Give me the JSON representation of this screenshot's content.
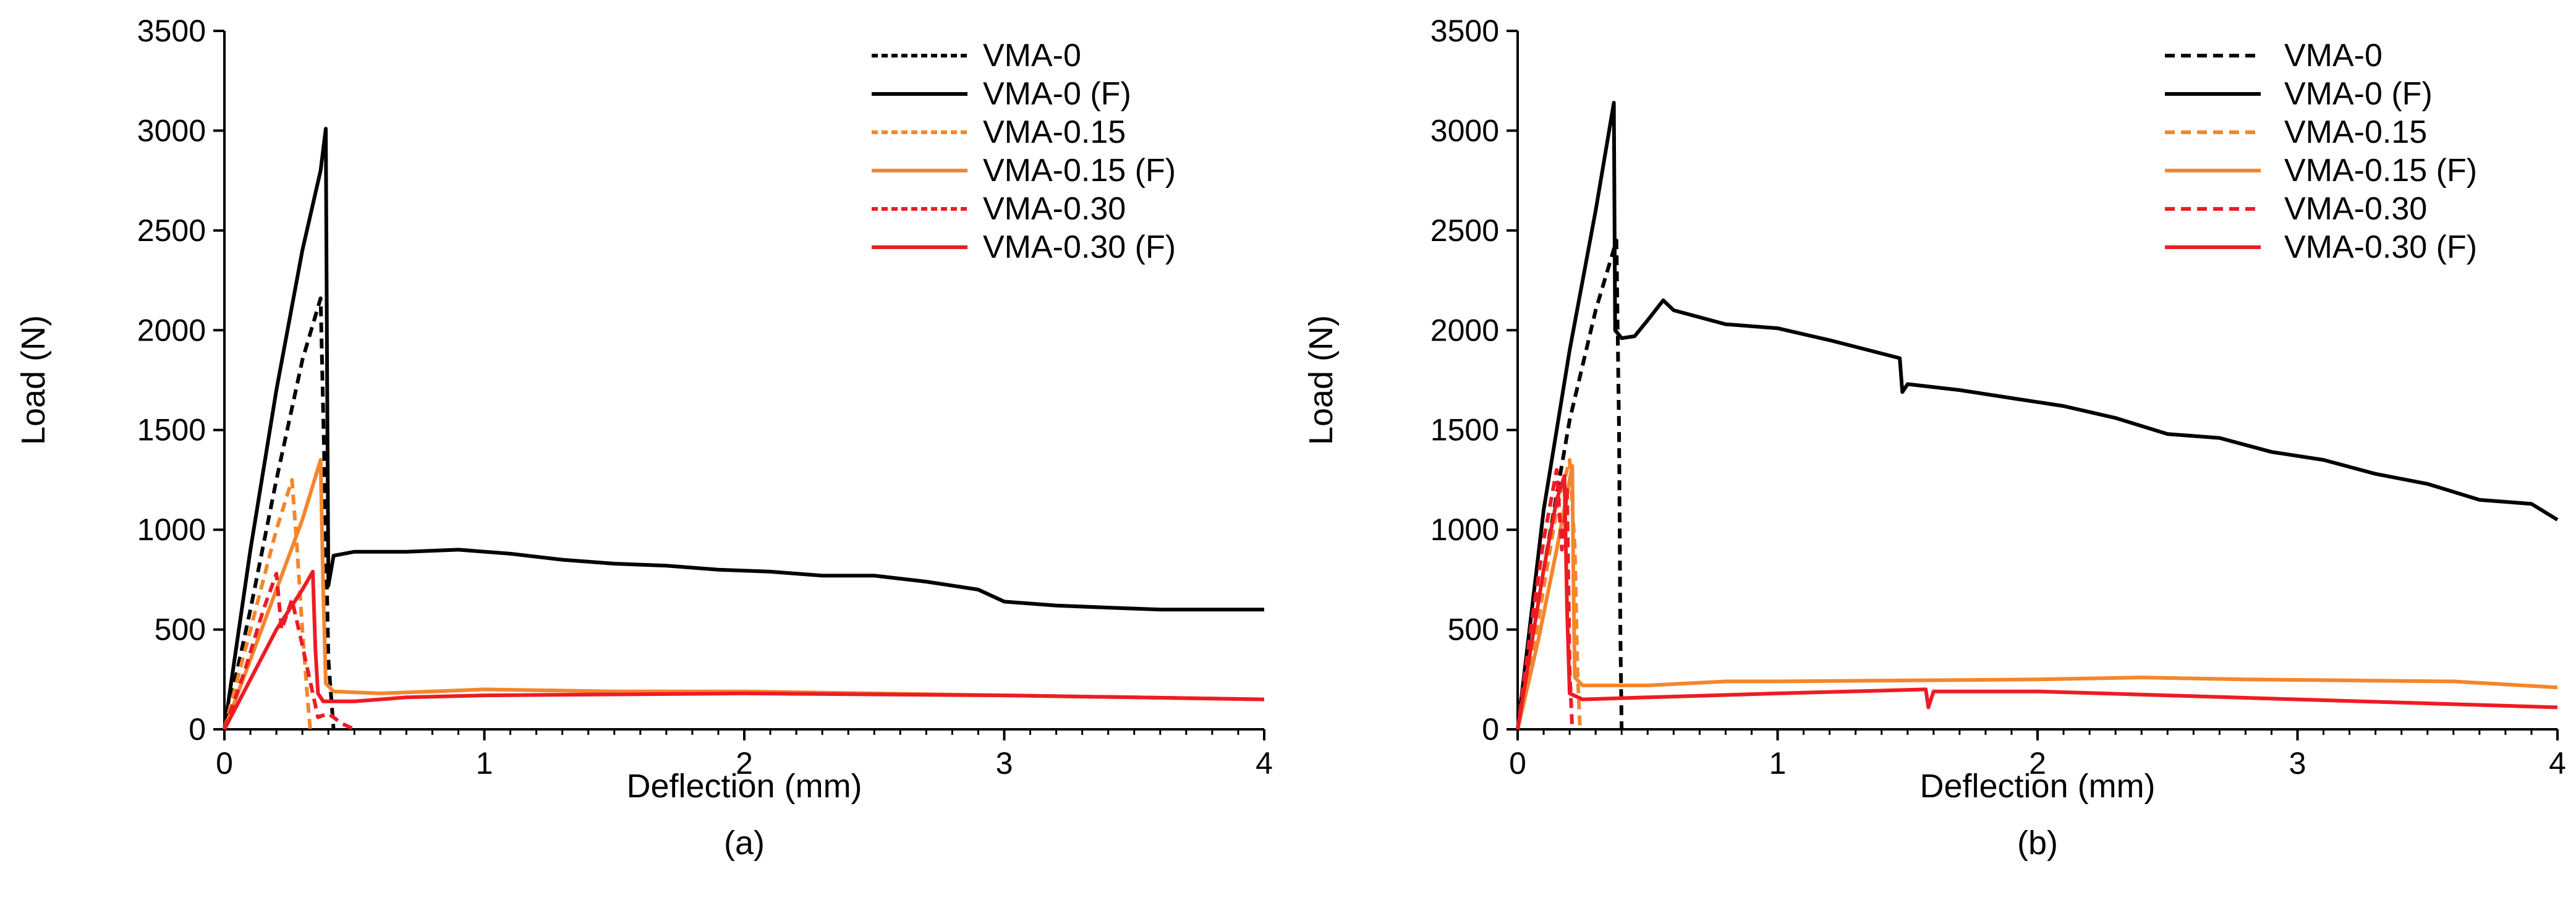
{
  "figure": {
    "captions": [
      "(a)",
      "(b)"
    ]
  },
  "colors": {
    "black": "#000000",
    "orange": "#F4862C",
    "red": "#ED1C24"
  },
  "chart_data": [
    {
      "type": "line",
      "caption": "(a)",
      "xlabel": "Deflection (mm)",
      "ylabel": "Load (N)",
      "xlim": [
        0,
        4
      ],
      "ylim": [
        0,
        3500
      ],
      "xticks": [
        "0",
        "1",
        "2",
        "3",
        "4"
      ],
      "yticks": [
        "0",
        "500",
        "1000",
        "1500",
        "2000",
        "2500",
        "3000",
        "3500"
      ],
      "grid": false,
      "legend_position": "top-right",
      "series": [
        {
          "name": "VMA-0",
          "color": "#000000",
          "dash": "dashed",
          "x": [
            0,
            0.1,
            0.2,
            0.3,
            0.37,
            0.385,
            0.4,
            0.42
          ],
          "y": [
            0,
            600,
            1250,
            1850,
            2160,
            1300,
            350,
            0
          ]
        },
        {
          "name": "VMA-0 (F)",
          "color": "#000000",
          "dash": "solid",
          "x": [
            0,
            0.1,
            0.2,
            0.3,
            0.37,
            0.39,
            0.395,
            0.4,
            0.42,
            0.5,
            0.7,
            0.9,
            1.1,
            1.3,
            1.5,
            1.7,
            1.9,
            2.1,
            2.3,
            2.5,
            2.7,
            2.9,
            3.0,
            3.2,
            3.4,
            3.6,
            3.8,
            4.0
          ],
          "y": [
            0,
            900,
            1700,
            2400,
            2800,
            3010,
            1800,
            720,
            870,
            890,
            890,
            900,
            880,
            850,
            830,
            820,
            800,
            790,
            770,
            770,
            740,
            700,
            640,
            620,
            610,
            600,
            600,
            600
          ]
        },
        {
          "name": "VMA-0.15",
          "color": "#F4862C",
          "dash": "dashed",
          "x": [
            0,
            0.1,
            0.2,
            0.26,
            0.28,
            0.3,
            0.32,
            0.33
          ],
          "y": [
            0,
            500,
            1000,
            1250,
            900,
            500,
            150,
            0
          ]
        },
        {
          "name": "VMA-0.15 (F)",
          "color": "#F4862C",
          "dash": "solid",
          "x": [
            0,
            0.1,
            0.2,
            0.3,
            0.37,
            0.38,
            0.39,
            0.42,
            0.6,
            0.8,
            1.0,
            1.5,
            2.0,
            2.5,
            3.0,
            3.5,
            4.0
          ],
          "y": [
            0,
            350,
            700,
            1050,
            1350,
            700,
            230,
            190,
            180,
            190,
            200,
            190,
            190,
            180,
            170,
            160,
            150
          ]
        },
        {
          "name": "VMA-0.30",
          "color": "#ED1C24",
          "dash": "dashed",
          "x": [
            0,
            0.08,
            0.15,
            0.2,
            0.22,
            0.26,
            0.3,
            0.34,
            0.36,
            0.4,
            0.45,
            0.5
          ],
          "y": [
            0,
            300,
            600,
            780,
            500,
            650,
            420,
            180,
            60,
            80,
            30,
            0
          ]
        },
        {
          "name": "VMA-0.30 (F)",
          "color": "#ED1C24",
          "dash": "solid",
          "x": [
            0,
            0.1,
            0.2,
            0.3,
            0.34,
            0.35,
            0.36,
            0.38,
            0.5,
            0.7,
            1.0,
            1.5,
            2.0,
            2.5,
            3.0,
            3.5,
            4.0
          ],
          "y": [
            0,
            250,
            500,
            700,
            790,
            400,
            180,
            140,
            140,
            160,
            170,
            175,
            180,
            175,
            170,
            160,
            150
          ]
        }
      ]
    },
    {
      "type": "line",
      "caption": "(b)",
      "xlabel": "Deflection (mm)",
      "ylabel": "Load (N)",
      "xlim": [
        0,
        4
      ],
      "ylim": [
        0,
        3500
      ],
      "xticks": [
        "0",
        "1",
        "2",
        "3",
        "4"
      ],
      "yticks": [
        "0",
        "500",
        "1000",
        "1500",
        "2000",
        "2500",
        "3000",
        "3500"
      ],
      "grid": false,
      "legend_position": "top-right",
      "series": [
        {
          "name": "VMA-0",
          "color": "#000000",
          "dash": "dashed",
          "x": [
            0,
            0.1,
            0.2,
            0.3,
            0.38,
            0.39,
            0.395,
            0.4
          ],
          "y": [
            0,
            800,
            1550,
            2100,
            2450,
            1500,
            500,
            0
          ]
        },
        {
          "name": "VMA-0 (F)",
          "color": "#000000",
          "dash": "solid",
          "x": [
            0,
            0.1,
            0.2,
            0.3,
            0.37,
            0.375,
            0.4,
            0.45,
            0.5,
            0.56,
            0.6,
            0.8,
            1.0,
            1.2,
            1.47,
            1.48,
            1.5,
            1.7,
            1.9,
            2.1,
            2.3,
            2.5,
            2.7,
            2.9,
            3.1,
            3.3,
            3.5,
            3.7,
            3.9,
            4.0
          ],
          "y": [
            0,
            1100,
            1900,
            2600,
            3140,
            2000,
            1960,
            1970,
            2050,
            2150,
            2100,
            2030,
            2010,
            1950,
            1860,
            1690,
            1730,
            1700,
            1660,
            1620,
            1560,
            1480,
            1460,
            1390,
            1350,
            1280,
            1230,
            1150,
            1130,
            1050
          ]
        },
        {
          "name": "VMA-0.15",
          "color": "#F4862C",
          "dash": "dashed",
          "x": [
            0,
            0.08,
            0.15,
            0.2,
            0.22,
            0.23,
            0.24
          ],
          "y": [
            0,
            550,
            1100,
            1350,
            900,
            300,
            0
          ]
        },
        {
          "name": "VMA-0.15 (F)",
          "color": "#F4862C",
          "dash": "solid",
          "x": [
            0,
            0.08,
            0.15,
            0.21,
            0.215,
            0.22,
            0.25,
            0.5,
            0.8,
            1.0,
            1.5,
            2.0,
            2.4,
            2.8,
            3.2,
            3.6,
            4.0
          ],
          "y": [
            0,
            450,
            900,
            1320,
            700,
            260,
            220,
            220,
            240,
            240,
            245,
            250,
            260,
            250,
            245,
            240,
            210
          ]
        },
        {
          "name": "VMA-0.30",
          "color": "#ED1C24",
          "dash": "dashed",
          "x": [
            0,
            0.05,
            0.1,
            0.15,
            0.17,
            0.19,
            0.2,
            0.21
          ],
          "y": [
            0,
            500,
            950,
            1300,
            900,
            1200,
            300,
            0
          ]
        },
        {
          "name": "VMA-0.30 (F)",
          "color": "#ED1C24",
          "dash": "solid",
          "x": [
            0,
            0.05,
            0.1,
            0.15,
            0.18,
            0.19,
            0.2,
            0.25,
            0.5,
            1.0,
            1.57,
            1.58,
            1.6,
            2.0,
            2.5,
            3.0,
            3.5,
            4.0
          ],
          "y": [
            0,
            400,
            800,
            1150,
            1270,
            600,
            180,
            150,
            160,
            180,
            200,
            110,
            190,
            190,
            170,
            150,
            130,
            110
          ]
        }
      ]
    }
  ]
}
